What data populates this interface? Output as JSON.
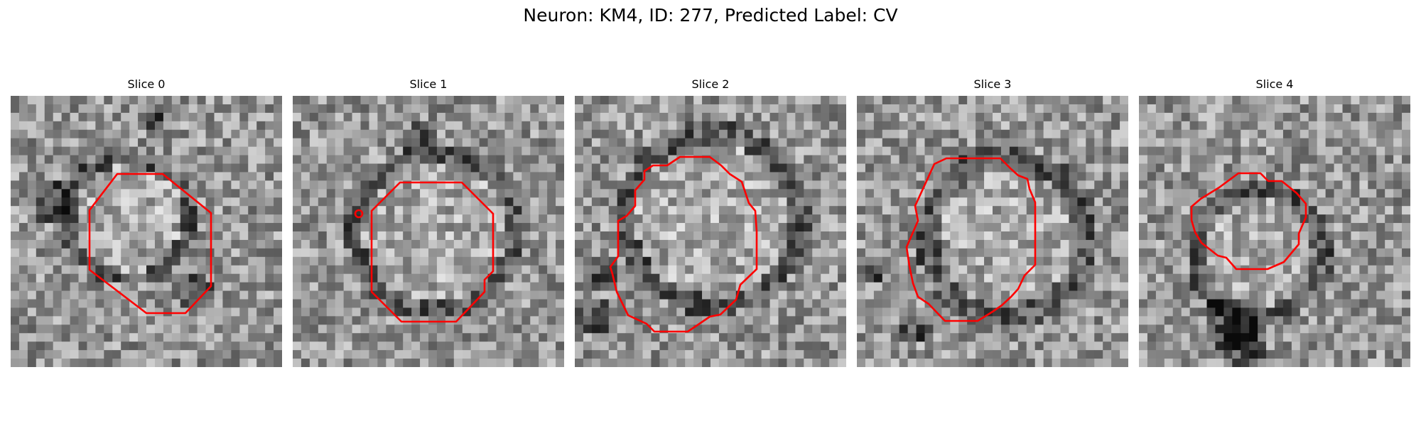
{
  "figure": {
    "title": "Neuron: KM4, ID: 277, Predicted Label: CV"
  },
  "slices": [
    {
      "label": "Slice 0"
    },
    {
      "label": "Slice 1"
    },
    {
      "label": "Slice 2"
    },
    {
      "label": "Slice 3"
    },
    {
      "label": "Slice 4"
    }
  ],
  "colors": {
    "contour": "#ff0000",
    "colormap": "grayscale"
  }
}
